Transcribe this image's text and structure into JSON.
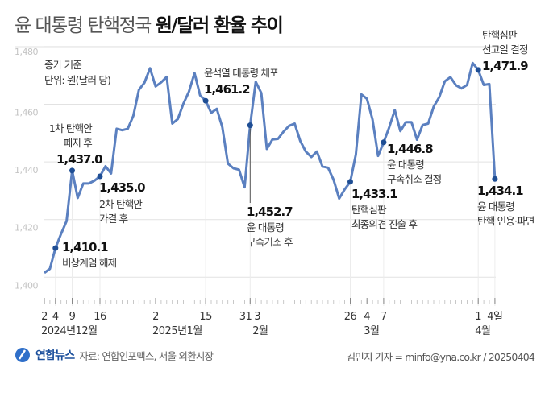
{
  "title": {
    "normal": "윤 대통령 탄핵정국 ",
    "bold": "원/달러 환율 추이"
  },
  "chart_data": {
    "type": "line",
    "note_lines": [
      "종가 기준",
      "단위: 원(달러 당)"
    ],
    "ylim": [
      1400,
      1480
    ],
    "yticks": [
      "1,400",
      "1,420",
      "1,440",
      "1,460",
      "1,480"
    ],
    "ytick_values": [
      1400,
      1420,
      1440,
      1460,
      1480
    ],
    "grid": true,
    "line_color": "#5b80c0",
    "marker_color": "#1f4e94",
    "dates": [
      "2024-12-02",
      "2024-12-03",
      "2024-12-04",
      "2024-12-05",
      "2024-12-06",
      "2024-12-09",
      "2024-12-10",
      "2024-12-11",
      "2024-12-12",
      "2024-12-13",
      "2024-12-16",
      "2024-12-17",
      "2024-12-18",
      "2024-12-19",
      "2024-12-20",
      "2024-12-23",
      "2024-12-24",
      "2024-12-26",
      "2024-12-27",
      "2024-12-30",
      "2025-01-02",
      "2025-01-03",
      "2025-01-06",
      "2025-01-07",
      "2025-01-08",
      "2025-01-09",
      "2025-01-10",
      "2025-01-13",
      "2025-01-14",
      "2025-01-15",
      "2025-01-16",
      "2025-01-17",
      "2025-01-20",
      "2025-01-21",
      "2025-01-22",
      "2025-01-23",
      "2025-01-24",
      "2025-01-31",
      "2025-02-03",
      "2025-02-04",
      "2025-02-05",
      "2025-02-06",
      "2025-02-07",
      "2025-02-10",
      "2025-02-11",
      "2025-02-12",
      "2025-02-13",
      "2025-02-14",
      "2025-02-17",
      "2025-02-18",
      "2025-02-19",
      "2025-02-20",
      "2025-02-21",
      "2025-02-24",
      "2025-02-25",
      "2025-02-26",
      "2025-02-27",
      "2025-02-28",
      "2025-03-04",
      "2025-03-05",
      "2025-03-06",
      "2025-03-07",
      "2025-03-10",
      "2025-03-11",
      "2025-03-12",
      "2025-03-13",
      "2025-03-14",
      "2025-03-17",
      "2025-03-18",
      "2025-03-19",
      "2025-03-20",
      "2025-03-21",
      "2025-03-24",
      "2025-03-25",
      "2025-03-26",
      "2025-03-27",
      "2025-03-28",
      "2025-03-31",
      "2025-04-01",
      "2025-04-02",
      "2025-04-03",
      "2025-04-04"
    ],
    "values": [
      1401.5,
      1402.9,
      1410.1,
      1415.0,
      1419.5,
      1437.0,
      1427.5,
      1432.5,
      1432.5,
      1433.5,
      1435.0,
      1438.5,
      1436.0,
      1451.5,
      1451.0,
      1451.5,
      1456.0,
      1465.0,
      1467.5,
      1472.5,
      1466.2,
      1467.6,
      1469.5,
      1453.3,
      1454.9,
      1460.2,
      1464.4,
      1470.8,
      1463.1,
      1461.2,
      1457.0,
      1458.4,
      1452.0,
      1439.4,
      1437.8,
      1437.3,
      1431.2,
      1452.7,
      1467.8,
      1463.9,
      1444.5,
      1447.8,
      1448.0,
      1450.5,
      1452.5,
      1453.3,
      1447.3,
      1443.6,
      1441.7,
      1443.6,
      1438.4,
      1438.0,
      1433.8,
      1427.3,
      1430.5,
      1433.1,
      1442.6,
      1463.4,
      1461.9,
      1454.7,
      1442.1,
      1446.8,
      1452.0,
      1458.0,
      1450.7,
      1453.8,
      1453.8,
      1447.7,
      1452.8,
      1453.3,
      1459.2,
      1462.5,
      1468.0,
      1469.4,
      1466.6,
      1465.5,
      1466.7,
      1474.3,
      1471.9,
      1466.7,
      1467.0,
      1434.1
    ],
    "xtick_labels": [
      {
        "date": "2024-12-02",
        "label": "2"
      },
      {
        "date": "2024-12-04",
        "label": "4"
      },
      {
        "date": "2024-12-09",
        "label": "9"
      },
      {
        "date": "2024-12-16",
        "label": "16"
      },
      {
        "date": "2025-01-02",
        "label": "2"
      },
      {
        "date": "2025-01-15",
        "label": "15"
      },
      {
        "date": "2025-01-31",
        "label": "31"
      },
      {
        "date": "2025-02-03",
        "label": "3"
      },
      {
        "date": "2025-02-26",
        "label": "26"
      },
      {
        "date": "2025-03-04",
        "label": "4"
      },
      {
        "date": "2025-03-07",
        "label": "7"
      },
      {
        "date": "2025-04-01",
        "label": "1"
      },
      {
        "date": "2025-04-04",
        "label": "4일"
      }
    ],
    "month_labels": [
      {
        "date": "2024-12-02",
        "label": "2024년12월"
      },
      {
        "date": "2025-01-02",
        "label": "2025년1월"
      },
      {
        "date": "2025-02-03",
        "label": "2월"
      },
      {
        "date": "2025-03-04",
        "label": "3월"
      },
      {
        "date": "2025-04-01",
        "label": "4월"
      }
    ],
    "annotations": [
      {
        "date": "2024-12-04",
        "value_label": "1,410.1",
        "text": [
          "비상계엄 해제"
        ]
      },
      {
        "date": "2024-12-09",
        "value_label": "1,437.0",
        "text": [
          "1차 탄핵안",
          "폐지 후"
        ]
      },
      {
        "date": "2024-12-16",
        "value_label": "1,435.0",
        "text": [
          "2차 탄핵안",
          "가결 후"
        ]
      },
      {
        "date": "2025-01-15",
        "value_label": "1,461.2",
        "text": [
          "윤석열 대통령 체포"
        ]
      },
      {
        "date": "2025-01-31",
        "value_label": "1,452.7",
        "text": [
          "윤 대통령",
          "구속기소 후"
        ]
      },
      {
        "date": "2025-02-26",
        "value_label": "1,433.1",
        "text": [
          "탄핵심판",
          "최종의견 진술 후"
        ]
      },
      {
        "date": "2025-03-07",
        "value_label": "1,446.8",
        "text": [
          "윤 대통령",
          "구속취소 결정"
        ]
      },
      {
        "date": "2025-04-01",
        "value_label": "1,471.9",
        "text": [
          "탄핵심판",
          "선고일 결정"
        ]
      },
      {
        "date": "2025-04-04",
        "value_label": "1,434.1",
        "text": [
          "윤 대통령",
          "탄핵 인용·파면"
        ]
      }
    ]
  },
  "footer": {
    "logo": "연합뉴스",
    "source": "자료: 연합인포맥스, 서울 외환시장",
    "credit": "김민지 기자 = minfo@yna.co.kr / 20250404"
  }
}
